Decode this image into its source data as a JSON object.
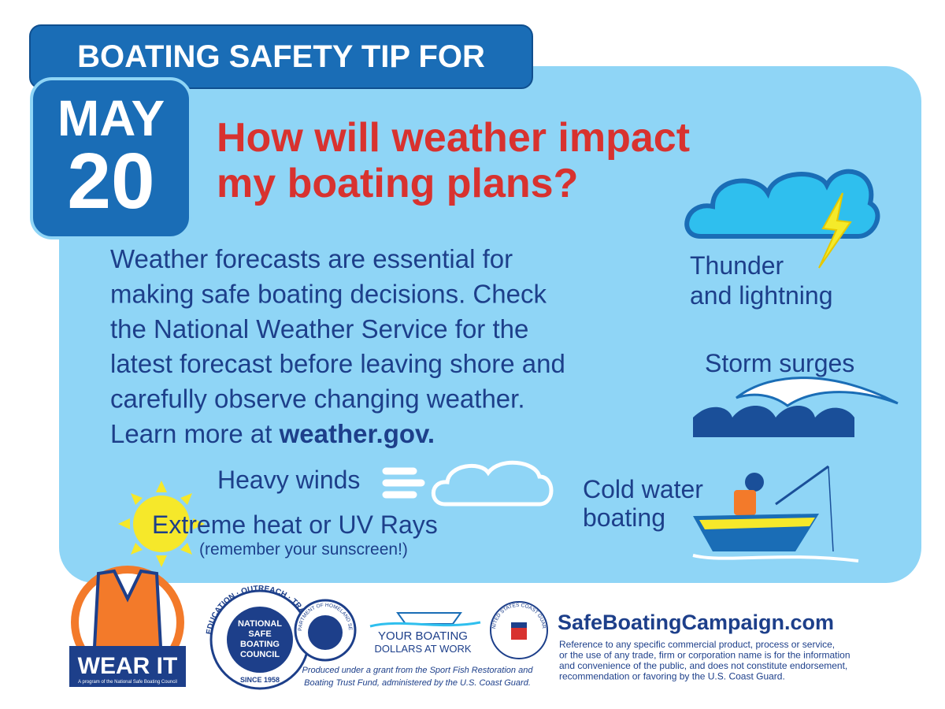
{
  "header": {
    "banner": "BOATING SAFETY TIP FOR",
    "month": "MAY",
    "day": "20"
  },
  "headline": [
    "How will weather impact",
    "my boating plans?"
  ],
  "body": {
    "lines": [
      "Weather forecasts are essential for",
      "making safe boating decisions. Check",
      "the National Weather Service for the",
      "latest forecast before leaving shore and",
      "carefully observe changing weather."
    ],
    "last_line": "Learn more at ",
    "link": "weather.gov."
  },
  "hazards": {
    "thunder": [
      "Thunder",
      "and lightning"
    ],
    "storm": "Storm surges",
    "winds": "Heavy winds",
    "heat": "Extreme heat or UV Rays",
    "heat_note": "(remember your sunscreen!)",
    "cold": [
      "Cold water",
      "boating"
    ]
  },
  "footer": {
    "wear_it": "WEAR IT",
    "wear_it_note": "A program of the National Safe Boating Council",
    "nsbc": [
      "NATIONAL",
      "SAFE",
      "BOATING",
      "COUNCIL"
    ],
    "nsbc_ring": "EDUCATION · OUTREACH · TRAINING",
    "nsbc_since": "SINCE 1958",
    "dhs": "U.S. DEPARTMENT OF HOMELAND SECURITY",
    "dollars": [
      "YOUR BOATING",
      "DOLLARS AT WORK"
    ],
    "grant": [
      "Produced under a grant from the Sport Fish Restoration and",
      "Boating Trust Fund, administered by the U.S. Coast Guard."
    ],
    "uscg": "UNITED STATES COAST GUARD",
    "website": "SafeBoatingCampaign.com",
    "disclaimer": [
      "Reference to any specific commercial product, process or service,",
      "or the use of any trade, firm or corporation name is for the information",
      "and convenience of the public, and does not constitute endorsement,",
      "recommendation or favoring by the U.S. Coast Guard."
    ]
  }
}
